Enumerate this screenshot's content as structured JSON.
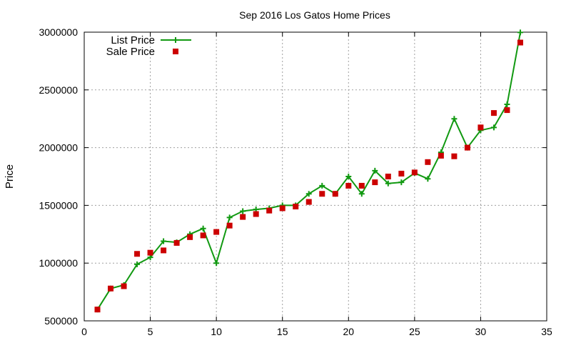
{
  "chart_data": {
    "type": "line",
    "title": "Sep 2016 Los Gatos Home Prices",
    "xlabel": "",
    "ylabel": "Price",
    "xlim": [
      0,
      35
    ],
    "ylim": [
      500000,
      3000000
    ],
    "xticks": [
      0,
      5,
      10,
      15,
      20,
      25,
      30,
      35
    ],
    "yticks": [
      500000,
      1000000,
      1500000,
      2000000,
      2500000,
      3000000
    ],
    "grid": true,
    "legend_position": "top-left",
    "series": [
      {
        "name": "List Price",
        "style": "line-with-plus-markers",
        "color": "#119911",
        "x": [
          1,
          2,
          3,
          4,
          5,
          6,
          7,
          8,
          9,
          10,
          11,
          12,
          13,
          14,
          15,
          16,
          17,
          18,
          19,
          20,
          21,
          22,
          23,
          24,
          25,
          26,
          27,
          28,
          29,
          30,
          31,
          32,
          33
        ],
        "y": [
          598000,
          780000,
          810000,
          990000,
          1050000,
          1190000,
          1180000,
          1250000,
          1300000,
          1000000,
          1395000,
          1450000,
          1465000,
          1475000,
          1500000,
          1500000,
          1600000,
          1670000,
          1600000,
          1750000,
          1600000,
          1800000,
          1690000,
          1700000,
          1780000,
          1730000,
          1960000,
          2250000,
          2000000,
          2150000,
          2175000,
          2375000,
          2998000
        ]
      },
      {
        "name": "Sale Price",
        "style": "square-markers",
        "color": "#cc0000",
        "x": [
          1,
          2,
          3,
          4,
          5,
          6,
          7,
          8,
          9,
          10,
          11,
          12,
          13,
          14,
          15,
          16,
          17,
          18,
          19,
          20,
          21,
          22,
          23,
          24,
          25,
          26,
          27,
          28,
          29,
          30,
          31,
          32,
          33
        ],
        "y": [
          598000,
          780000,
          800000,
          1080000,
          1090000,
          1110000,
          1175000,
          1225000,
          1240000,
          1270000,
          1325000,
          1400000,
          1425000,
          1455000,
          1475000,
          1490000,
          1530000,
          1600000,
          1600000,
          1670000,
          1670000,
          1700000,
          1750000,
          1775000,
          1785000,
          1875000,
          1930000,
          1925000,
          2000000,
          2175000,
          2300000,
          2325000,
          2910000
        ]
      }
    ]
  }
}
